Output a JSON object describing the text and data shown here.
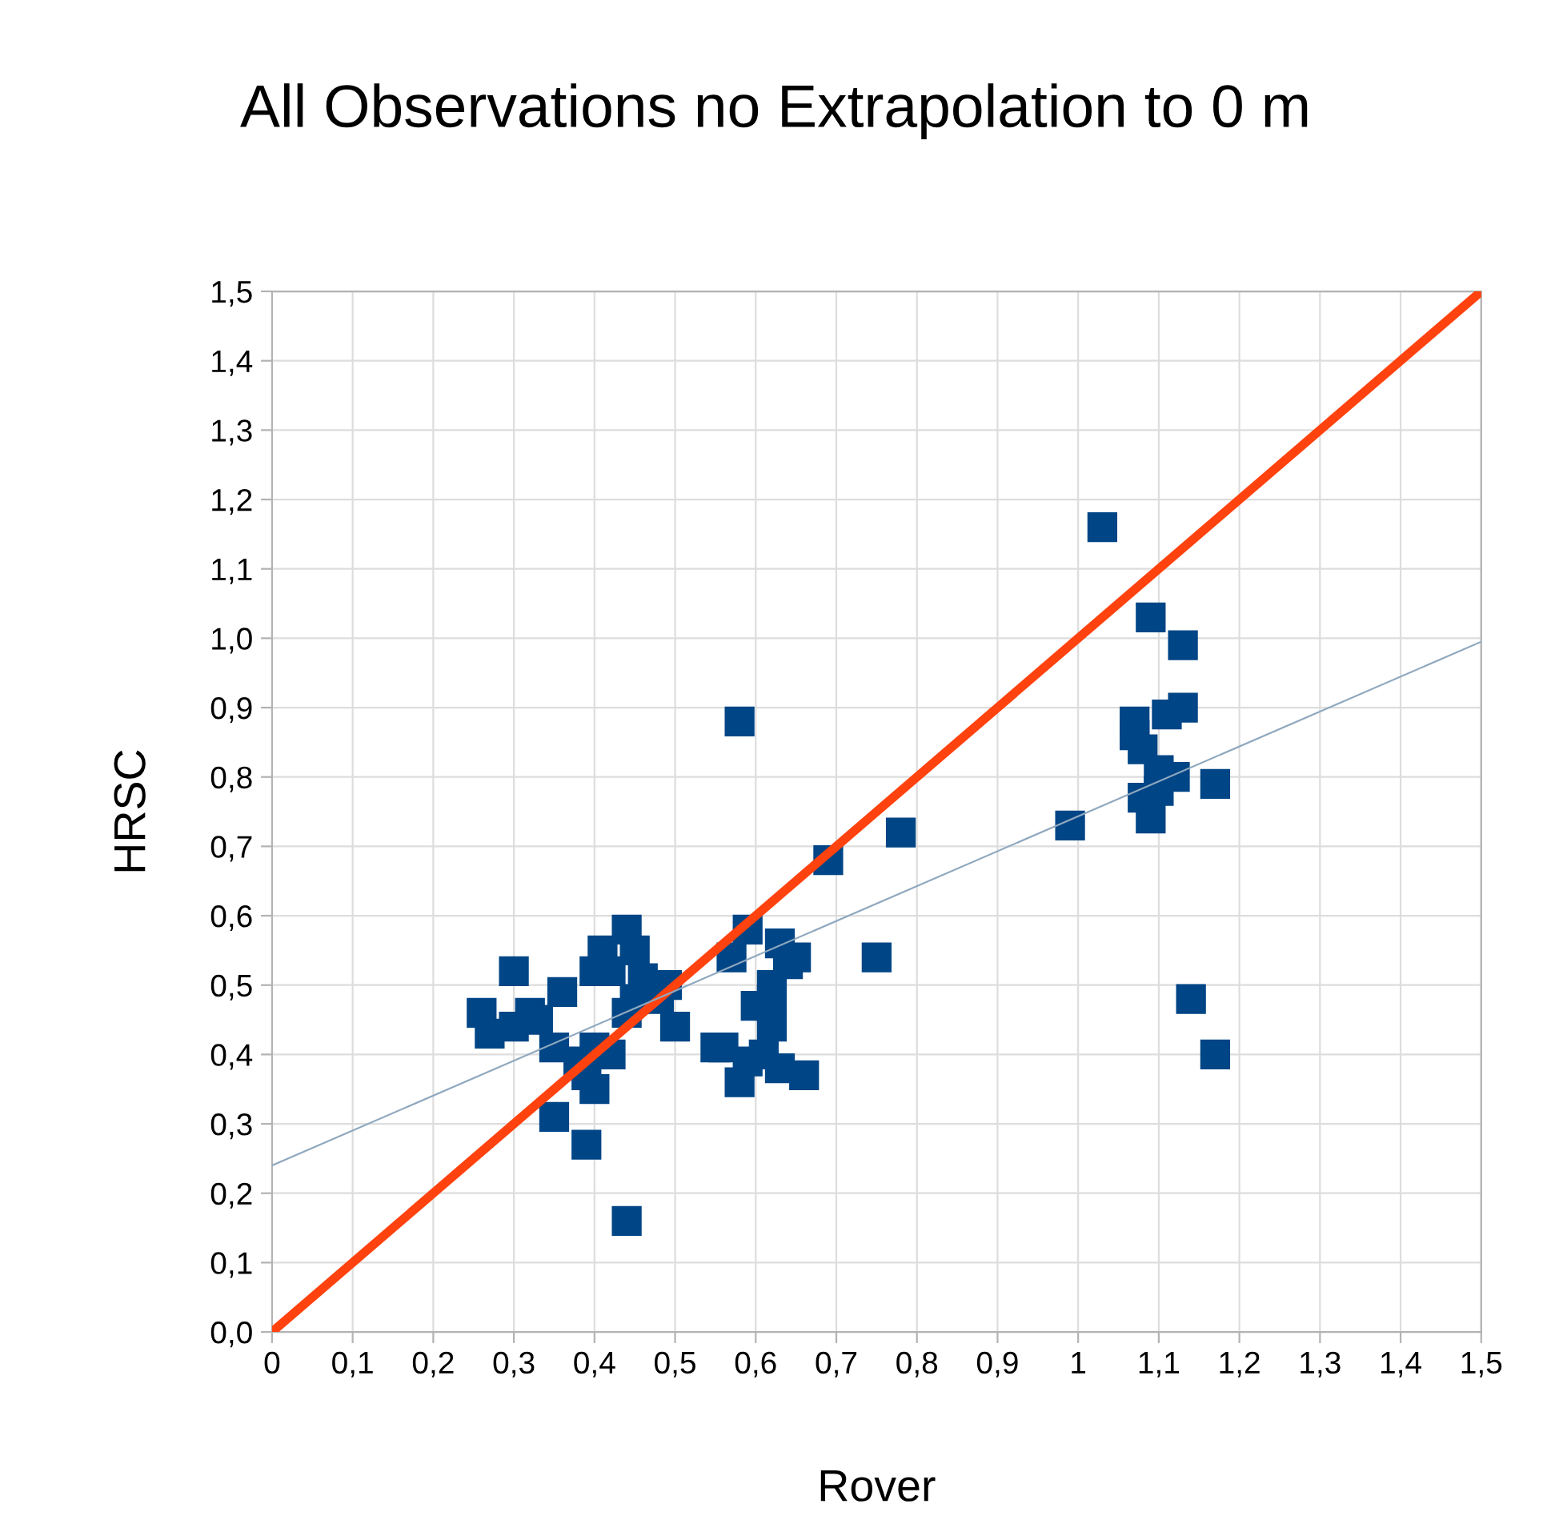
{
  "chart_data": {
    "type": "scatter",
    "title": "All Observations no Extrapolation to 0 m",
    "xlabel": "Rover",
    "ylabel": "HRSC",
    "grid": true,
    "xlim": [
      0,
      1.5
    ],
    "ylim": [
      0,
      1.5
    ],
    "xticks": [
      0,
      {
        "value": 0.1,
        "label": "0,1"
      },
      {
        "value": 0.2,
        "label": "0,2"
      },
      {
        "value": 0.3,
        "label": "0,3"
      },
      {
        "value": 0.4,
        "label": "0,4"
      },
      {
        "value": 0.5,
        "label": "0,5"
      },
      {
        "value": 0.6,
        "label": "0,6"
      },
      {
        "value": 0.7,
        "label": "0,7"
      },
      {
        "value": 0.8,
        "label": "0,8"
      },
      {
        "value": 0.9,
        "label": "0,9"
      },
      1,
      {
        "value": 1.1,
        "label": "1,1"
      },
      {
        "value": 1.2,
        "label": "1,2"
      },
      {
        "value": 1.3,
        "label": "1,3"
      },
      {
        "value": 1.4,
        "label": "1,4"
      },
      {
        "value": 1.5,
        "label": "1,5"
      }
    ],
    "yticks": [
      {
        "value": 0,
        "label": "0,0"
      },
      {
        "value": 0.1,
        "label": "0,1"
      },
      {
        "value": 0.2,
        "label": "0,2"
      },
      {
        "value": 0.3,
        "label": "0,3"
      },
      {
        "value": 0.4,
        "label": "0,4"
      },
      {
        "value": 0.5,
        "label": "0,5"
      },
      {
        "value": 0.6,
        "label": "0,6"
      },
      {
        "value": 0.7,
        "label": "0,7"
      },
      {
        "value": 0.8,
        "label": "0,8"
      },
      {
        "value": 0.9,
        "label": "0,9"
      },
      {
        "value": 1.0,
        "label": "1,0"
      },
      {
        "value": 1.1,
        "label": "1,1"
      },
      {
        "value": 1.2,
        "label": "1,2"
      },
      {
        "value": 1.3,
        "label": "1,3"
      },
      {
        "value": 1.4,
        "label": "1,4"
      },
      {
        "value": 1.5,
        "label": "1,5"
      }
    ],
    "series": [
      {
        "color": "#004586",
        "marker": "square",
        "x": [
          0.26,
          0.27,
          0.3,
          0.3,
          0.32,
          0.33,
          0.35,
          0.35,
          0.36,
          0.38,
          0.39,
          0.39,
          0.4,
          0.4,
          0.4,
          0.41,
          0.42,
          0.42,
          0.44,
          0.44,
          0.44,
          0.45,
          0.45,
          0.46,
          0.48,
          0.49,
          0.5,
          0.55,
          0.56,
          0.57,
          0.58,
          0.58,
          0.59,
          0.59,
          0.6,
          0.61,
          0.62,
          0.62,
          0.62,
          0.63,
          0.63,
          0.64,
          0.65,
          0.66,
          0.69,
          0.75,
          0.78,
          0.99,
          1.03,
          1.07,
          1.07,
          1.08,
          1.08,
          1.09,
          1.09,
          1.1,
          1.1,
          1.11,
          1.12,
          1.13,
          1.13,
          1.14,
          1.17,
          1.17
        ],
        "values": [
          0.46,
          0.43,
          0.52,
          0.44,
          0.46,
          0.45,
          0.41,
          0.31,
          0.49,
          0.39,
          0.27,
          0.37,
          0.52,
          0.41,
          0.35,
          0.55,
          0.52,
          0.4,
          0.58,
          0.46,
          0.16,
          0.55,
          0.48,
          0.51,
          0.48,
          0.5,
          0.44,
          0.41,
          0.41,
          0.54,
          0.88,
          0.36,
          0.58,
          0.39,
          0.47,
          0.4,
          0.44,
          0.48,
          0.5,
          0.56,
          0.38,
          0.53,
          0.54,
          0.37,
          0.68,
          0.54,
          0.72,
          0.73,
          1.16,
          0.88,
          0.86,
          0.84,
          0.77,
          1.03,
          0.74,
          0.81,
          0.78,
          0.89,
          0.8,
          0.9,
          0.99,
          0.48,
          0.79,
          0.4
        ]
      },
      {
        "type": "line",
        "color": "#ff420e",
        "x": [
          0,
          1.5
        ],
        "values": [
          0,
          1.5
        ]
      },
      {
        "type": "line",
        "color": "#8fa8bf",
        "x": [
          0,
          1.5
        ],
        "values": [
          0.24,
          0.995
        ]
      }
    ]
  }
}
